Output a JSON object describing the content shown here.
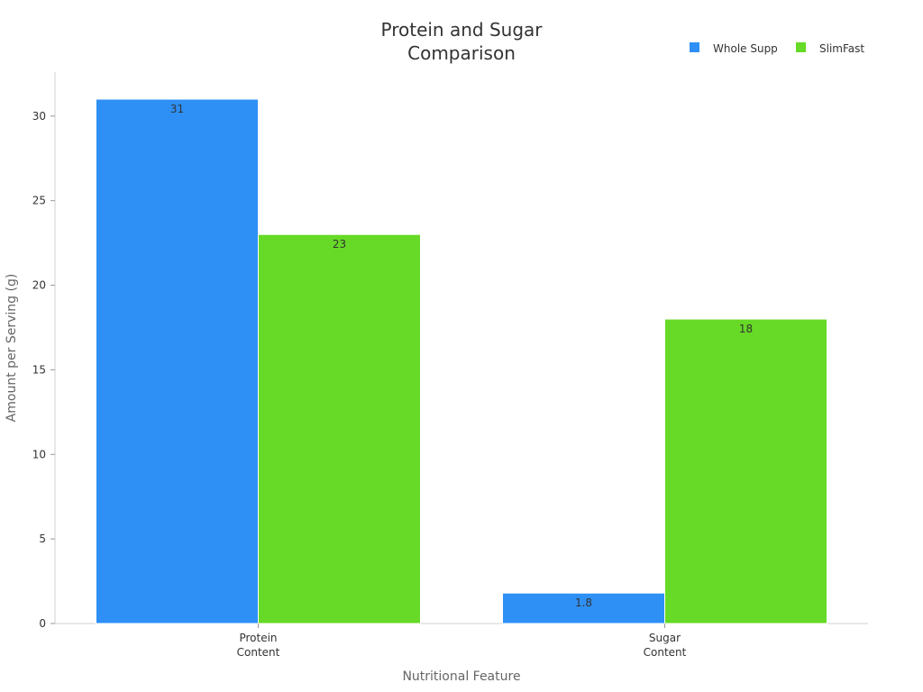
{
  "chart_data": {
    "type": "bar",
    "title_lines": [
      "Protein and Sugar",
      "Comparison"
    ],
    "xlabel": "Nutritional Feature",
    "ylabel": "Amount per Serving (g)",
    "categories": [
      [
        "Protein",
        "Content"
      ],
      [
        "Sugar",
        "Content"
      ]
    ],
    "series": [
      {
        "name": "Whole Supp",
        "color": "#2e90f5",
        "values": [
          31,
          1.8
        ]
      },
      {
        "name": "SlimFast",
        "color": "#66da26",
        "values": [
          23,
          18
        ]
      }
    ],
    "data_labels": [
      [
        "31",
        "1.8"
      ],
      [
        "23",
        "18"
      ]
    ],
    "ylim": [
      0,
      32.6
    ],
    "yticks": [
      0,
      5,
      10,
      15,
      20,
      25,
      30
    ],
    "grid": false,
    "legend_position": "top-right"
  }
}
